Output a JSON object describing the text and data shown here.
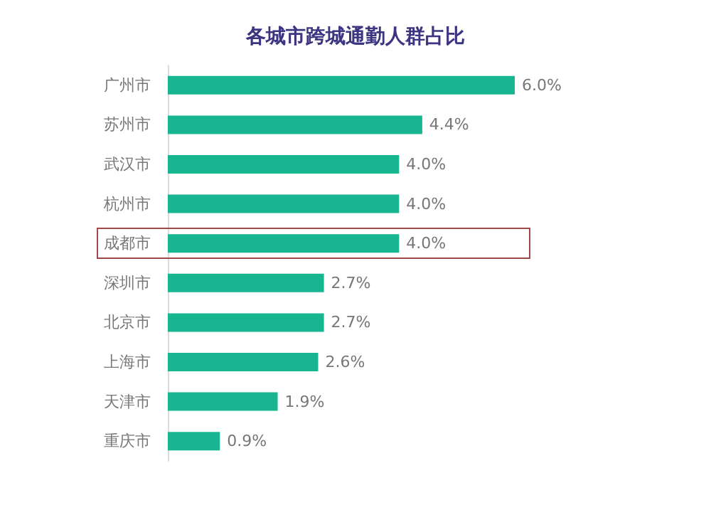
{
  "chart_data": {
    "type": "bar",
    "orientation": "horizontal",
    "title": "各城市跨城通勤人群占比",
    "categories": [
      "广州市",
      "苏州市",
      "武汉市",
      "杭州市",
      "成都市",
      "深圳市",
      "北京市",
      "上海市",
      "天津市",
      "重庆市"
    ],
    "values": [
      6.0,
      4.4,
      4.0,
      4.0,
      4.0,
      2.7,
      2.7,
      2.6,
      1.9,
      0.9
    ],
    "value_labels": [
      "6.0%",
      "4.4%",
      "4.0%",
      "4.0%",
      "4.0%",
      "2.7%",
      "2.7%",
      "2.6%",
      "1.9%",
      "0.9%"
    ],
    "color": "#17b590"
  }
}
